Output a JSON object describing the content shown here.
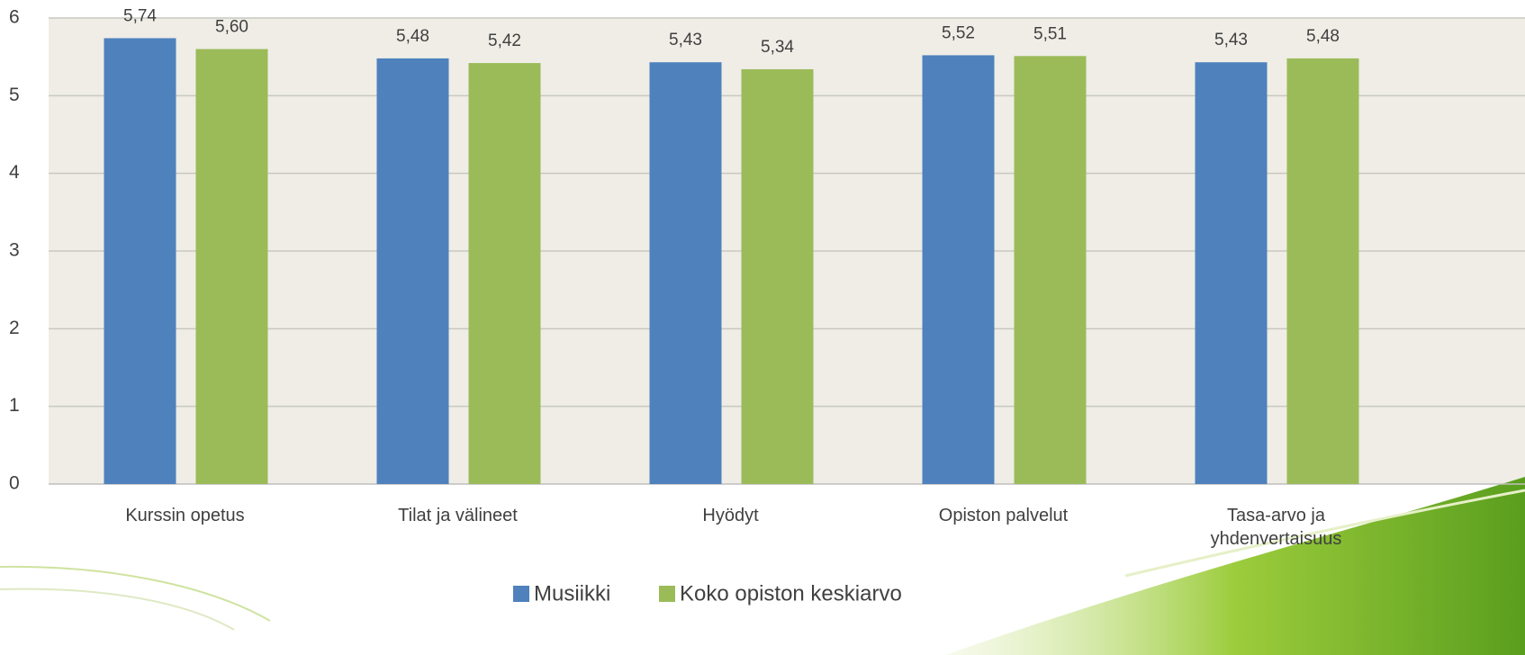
{
  "chart_data": {
    "type": "bar",
    "categories": [
      "Kurssin opetus",
      "Tilat ja välineet",
      "Hyödyt",
      "Opiston palvelut",
      "Tasa-arvo ja yhdenvertaisuus"
    ],
    "series": [
      {
        "name": "Musiikki",
        "color": "#4f81bd",
        "values": [
          5.74,
          5.48,
          5.43,
          5.52,
          5.43
        ],
        "value_labels": [
          "5,74",
          "5,48",
          "5,43",
          "5,52",
          "5,43"
        ]
      },
      {
        "name": "Koko opiston keskiarvo",
        "color": "#9bbb59",
        "values": [
          5.6,
          5.42,
          5.34,
          5.51,
          5.48
        ],
        "value_labels": [
          "5,60",
          "5,42",
          "5,34",
          "5,51",
          "5,48"
        ]
      }
    ],
    "ylim": [
      0,
      6
    ],
    "yticks": [
      0,
      1,
      2,
      3,
      4,
      5,
      6
    ],
    "grid": true,
    "legend": "bottom"
  }
}
